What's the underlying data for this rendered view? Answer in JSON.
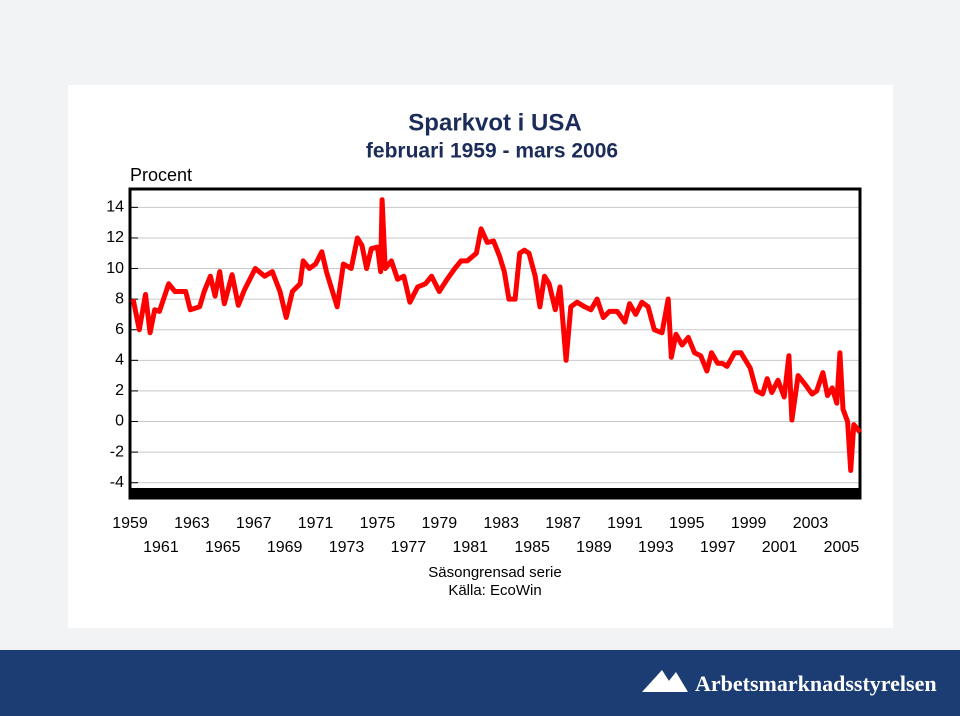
{
  "chart_data": {
    "type": "line",
    "title": "Sparkvot i USA",
    "subtitle": "februari 1959 - mars 2006",
    "ylabel": "Procent",
    "notes": [
      "Säsongrensad serie",
      "Källa: EcoWin"
    ],
    "footer": "Arbetsmarknadsstyrelsen",
    "xlim": [
      1959.0,
      2006.2
    ],
    "ylim": [
      -5,
      15.2
    ],
    "xticks": [
      1959,
      1961,
      1963,
      1965,
      1967,
      1969,
      1971,
      1973,
      1975,
      1977,
      1979,
      1981,
      1983,
      1985,
      1987,
      1989,
      1991,
      1993,
      1995,
      1997,
      1999,
      2001,
      2003,
      2005
    ],
    "yticks": [
      14,
      12,
      10,
      8,
      6,
      4,
      2,
      0,
      -2,
      -4
    ],
    "grid": true,
    "series": [
      {
        "color": "#ff0000",
        "x": [
          1959.2,
          1959.6,
          1960.0,
          1960.3,
          1960.6,
          1960.9,
          1961.5,
          1961.9,
          1962.6,
          1962.9,
          1963.5,
          1963.8,
          1964.2,
          1964.5,
          1964.8,
          1965.1,
          1965.6,
          1966.0,
          1966.4,
          1967.1,
          1967.7,
          1968.2,
          1968.7,
          1969.1,
          1969.5,
          1970.0,
          1970.2,
          1970.6,
          1971.0,
          1971.4,
          1971.7,
          1972.4,
          1972.8,
          1973.3,
          1973.7,
          1974.0,
          1974.3,
          1974.6,
          1975.0,
          1975.2,
          1975.3,
          1975.5,
          1975.9,
          1976.3,
          1976.7,
          1977.1,
          1977.6,
          1978.1,
          1978.5,
          1979.0,
          1979.5,
          1980.0,
          1980.4,
          1980.8,
          1981.4,
          1981.7,
          1982.1,
          1982.5,
          1982.9,
          1983.2,
          1983.5,
          1983.9,
          1984.2,
          1984.5,
          1984.8,
          1985.2,
          1985.5,
          1985.8,
          1986.1,
          1986.5,
          1986.8,
          1987.2,
          1987.5,
          1987.9,
          1988.4,
          1988.8,
          1989.2,
          1989.6,
          1990.0,
          1990.5,
          1991.0,
          1991.3,
          1991.7,
          1992.1,
          1992.5,
          1992.9,
          1993.4,
          1993.8,
          1994.0,
          1994.3,
          1994.7,
          1995.1,
          1995.5,
          1995.9,
          1996.3,
          1996.6,
          1997.0,
          1997.3,
          1997.6,
          1998.1,
          1998.5,
          1999.1,
          1999.5,
          1999.9,
          2000.2,
          2000.5,
          2000.9,
          2001.3,
          2001.6,
          2001.8,
          2002.2,
          2002.6,
          2003.1,
          2003.4,
          2003.8,
          2004.1,
          2004.4,
          2004.7,
          2004.9,
          2005.1,
          2005.4,
          2005.6,
          2005.8,
          2006.2
        ],
        "values": [
          8.0,
          6.0,
          8.3,
          5.8,
          7.3,
          7.2,
          9.0,
          8.5,
          8.5,
          7.3,
          7.5,
          8.5,
          9.5,
          8.2,
          9.8,
          7.7,
          9.6,
          7.6,
          8.6,
          10.0,
          9.5,
          9.8,
          8.5,
          6.8,
          8.5,
          9.0,
          10.5,
          10.0,
          10.3,
          11.1,
          9.8,
          7.5,
          10.3,
          10.0,
          12.0,
          11.5,
          10.0,
          11.3,
          11.4,
          9.8,
          14.5,
          10.0,
          10.5,
          9.3,
          9.5,
          7.8,
          8.8,
          9.0,
          9.5,
          8.5,
          9.3,
          10.0,
          10.5,
          10.5,
          11.0,
          12.6,
          11.7,
          11.8,
          10.8,
          9.8,
          8.0,
          8.0,
          11.0,
          11.2,
          11.0,
          9.5,
          7.5,
          9.5,
          9.0,
          7.3,
          8.8,
          4.0,
          7.5,
          7.8,
          7.5,
          7.3,
          8.0,
          6.8,
          7.2,
          7.2,
          6.5,
          7.7,
          7.0,
          7.8,
          7.5,
          6.0,
          5.8,
          8.0,
          4.2,
          5.7,
          5.0,
          5.5,
          4.5,
          4.3,
          3.3,
          4.5,
          3.8,
          3.8,
          3.6,
          4.5,
          4.5,
          3.5,
          2.0,
          1.8,
          2.8,
          1.9,
          2.7,
          1.6,
          4.3,
          0.1,
          3.0,
          2.5,
          1.8,
          2.0,
          3.2,
          1.7,
          2.2,
          1.2,
          4.5,
          0.8,
          0.0,
          -3.2,
          -0.2,
          -0.7
        ]
      }
    ]
  }
}
